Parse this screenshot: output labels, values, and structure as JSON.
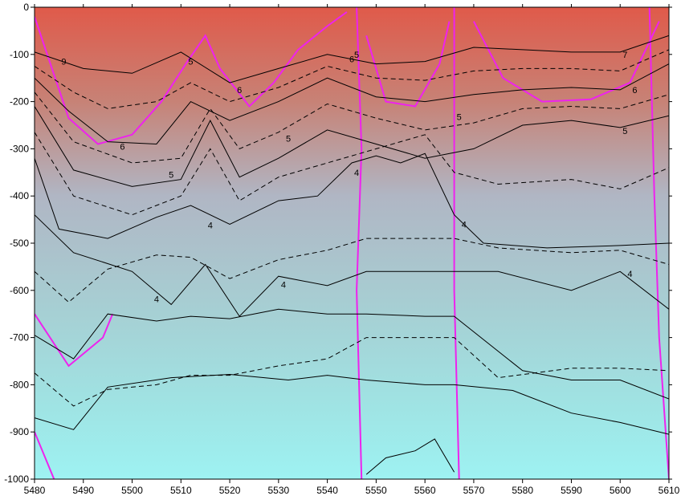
{
  "chart_data": {
    "type": "heatmap",
    "title": "",
    "xlabel": "",
    "ylabel": "",
    "xlim": [
      5480,
      5610
    ],
    "ylim": [
      -1000,
      0
    ],
    "x_ticks": [
      5480,
      5490,
      5500,
      5510,
      5520,
      5530,
      5540,
      5550,
      5560,
      5570,
      5580,
      5590,
      5600,
      5610
    ],
    "y_ticks": [
      0,
      -100,
      -200,
      -300,
      -400,
      -500,
      -600,
      -700,
      -800,
      -900,
      -1000
    ],
    "x_tick_labels": [
      "5480",
      "5490",
      "5500",
      "5510",
      "5520",
      "5530",
      "5540",
      "5550",
      "5560",
      "5570",
      "5580",
      "5590",
      "5600",
      "5610"
    ],
    "y_tick_labels": [
      "0",
      "-100",
      "-200",
      "-300",
      "-400",
      "-500",
      "-600",
      "-700",
      "-800",
      "-900",
      "-1000"
    ],
    "colors": {
      "warm": "#e05a4a",
      "mid": "#b0b6c4",
      "cool": "#9ef2f2",
      "secondary_contour": "#ee22ee",
      "contour": "#000000"
    },
    "contour_labels": [
      {
        "text": "7",
        "x": 5601,
        "y": -100
      },
      {
        "text": "6",
        "x": 5603,
        "y": -175
      },
      {
        "text": "5",
        "x": 5601,
        "y": -262
      },
      {
        "text": "4",
        "x": 5602,
        "y": -565
      },
      {
        "text": "6",
        "x": 5498,
        "y": -295
      },
      {
        "text": "4",
        "x": 5505,
        "y": -618
      },
      {
        "text": "4",
        "x": 5531,
        "y": -588
      },
      {
        "text": "4",
        "x": 5516,
        "y": -462
      },
      {
        "text": "5",
        "x": 5508,
        "y": -355
      },
      {
        "text": "5",
        "x": 5532,
        "y": -278
      },
      {
        "text": "6",
        "x": 5522,
        "y": -175
      },
      {
        "text": "5",
        "x": 5512,
        "y": -115
      },
      {
        "text": "9",
        "x": 5486,
        "y": -115
      },
      {
        "text": "6",
        "x": 5545,
        "y": -110
      },
      {
        "text": "5",
        "x": 5546,
        "y": -100
      },
      {
        "text": "4",
        "x": 5546,
        "y": -350
      },
      {
        "text": "5",
        "x": 5567,
        "y": -232
      },
      {
        "text": "4",
        "x": 5568,
        "y": -460
      }
    ],
    "contours_solid": [
      {
        "level": 7,
        "points": [
          [
            5480,
            -95
          ],
          [
            5490,
            -130
          ],
          [
            5500,
            -140
          ],
          [
            5510,
            -95
          ],
          [
            5520,
            -160
          ],
          [
            5530,
            -130
          ],
          [
            5540,
            -100
          ],
          [
            5550,
            -120
          ],
          [
            5560,
            -115
          ],
          [
            5570,
            -85
          ],
          [
            5580,
            -90
          ],
          [
            5590,
            -95
          ],
          [
            5600,
            -95
          ],
          [
            5610,
            -60
          ]
        ]
      },
      {
        "level": 6,
        "points": [
          [
            5480,
            -150
          ],
          [
            5487,
            -220
          ],
          [
            5495,
            -285
          ],
          [
            5505,
            -290
          ],
          [
            5512,
            -200
          ],
          [
            5520,
            -240
          ],
          [
            5530,
            -200
          ],
          [
            5540,
            -150
          ],
          [
            5550,
            -190
          ],
          [
            5560,
            -200
          ],
          [
            5570,
            -185
          ],
          [
            5580,
            -175
          ],
          [
            5590,
            -170
          ],
          [
            5600,
            -175
          ],
          [
            5610,
            -120
          ]
        ]
      },
      {
        "level": 5,
        "points": [
          [
            5480,
            -210
          ],
          [
            5488,
            -345
          ],
          [
            5500,
            -380
          ],
          [
            5510,
            -365
          ],
          [
            5516,
            -240
          ],
          [
            5522,
            -360
          ],
          [
            5530,
            -320
          ],
          [
            5540,
            -260
          ],
          [
            5550,
            -290
          ],
          [
            5560,
            -320
          ],
          [
            5570,
            -300
          ],
          [
            5580,
            -250
          ],
          [
            5590,
            -240
          ],
          [
            5600,
            -255
          ],
          [
            5610,
            -230
          ]
        ]
      },
      {
        "level": 4.5,
        "points": [
          [
            5480,
            -320
          ],
          [
            5485,
            -470
          ],
          [
            5495,
            -490
          ],
          [
            5505,
            -445
          ],
          [
            5512,
            -420
          ],
          [
            5520,
            -460
          ],
          [
            5530,
            -410
          ],
          [
            5538,
            -400
          ],
          [
            5545,
            -330
          ],
          [
            5550,
            -315
          ],
          [
            5555,
            -330
          ],
          [
            5560,
            -310
          ],
          [
            5566,
            -440
          ],
          [
            5572,
            -500
          ],
          [
            5585,
            -510
          ],
          [
            5600,
            -505
          ],
          [
            5610,
            -500
          ]
        ]
      },
      {
        "level": 4,
        "points": [
          [
            5480,
            -440
          ],
          [
            5488,
            -520
          ],
          [
            5500,
            -560
          ],
          [
            5508,
            -630
          ],
          [
            5515,
            -545
          ],
          [
            5522,
            -655
          ],
          [
            5530,
            -570
          ],
          [
            5540,
            -590
          ],
          [
            5548,
            -560
          ],
          [
            5556,
            -560
          ],
          [
            5566,
            -560
          ],
          [
            5575,
            -560
          ],
          [
            5590,
            -600
          ],
          [
            5600,
            -560
          ],
          [
            5610,
            -640
          ]
        ]
      },
      {
        "level": 3,
        "points": [
          [
            5480,
            -695
          ],
          [
            5488,
            -745
          ],
          [
            5495,
            -650
          ],
          [
            5505,
            -665
          ],
          [
            5512,
            -655
          ],
          [
            5520,
            -660
          ],
          [
            5530,
            -640
          ],
          [
            5540,
            -650
          ],
          [
            5548,
            -650
          ],
          [
            5560,
            -655
          ],
          [
            5566,
            -655
          ],
          [
            5580,
            -770
          ],
          [
            5590,
            -790
          ],
          [
            5600,
            -790
          ],
          [
            5610,
            -830
          ]
        ]
      },
      {
        "level": 2.5,
        "points": [
          [
            5480,
            -870
          ],
          [
            5488,
            -895
          ],
          [
            5495,
            -805
          ],
          [
            5508,
            -785
          ],
          [
            5520,
            -778
          ],
          [
            5532,
            -790
          ],
          [
            5540,
            -780
          ],
          [
            5548,
            -790
          ],
          [
            5560,
            -800
          ],
          [
            5566,
            -800
          ],
          [
            5578,
            -812
          ],
          [
            5590,
            -860
          ],
          [
            5600,
            -880
          ],
          [
            5610,
            -905
          ]
        ]
      },
      {
        "level": 2,
        "points": [
          [
            5548,
            -990
          ],
          [
            5552,
            -955
          ],
          [
            5558,
            -940
          ],
          [
            5562,
            -915
          ],
          [
            5566,
            -985
          ]
        ]
      }
    ],
    "contours_dashed": [
      {
        "level": 6.5,
        "points": [
          [
            5480,
            -125
          ],
          [
            5488,
            -180
          ],
          [
            5495,
            -215
          ],
          [
            5505,
            -200
          ],
          [
            5512,
            -160
          ],
          [
            5520,
            -200
          ],
          [
            5530,
            -170
          ],
          [
            5540,
            -125
          ],
          [
            5550,
            -150
          ],
          [
            5560,
            -155
          ],
          [
            5570,
            -135
          ],
          [
            5580,
            -130
          ],
          [
            5590,
            -130
          ],
          [
            5600,
            -135
          ],
          [
            5610,
            -90
          ]
        ]
      },
      {
        "level": 5.5,
        "points": [
          [
            5480,
            -180
          ],
          [
            5488,
            -285
          ],
          [
            5500,
            -330
          ],
          [
            5510,
            -320
          ],
          [
            5516,
            -215
          ],
          [
            5522,
            -300
          ],
          [
            5530,
            -265
          ],
          [
            5540,
            -205
          ],
          [
            5550,
            -235
          ],
          [
            5560,
            -260
          ],
          [
            5570,
            -245
          ],
          [
            5580,
            -215
          ],
          [
            5590,
            -210
          ],
          [
            5600,
            -215
          ],
          [
            5610,
            -185
          ]
        ]
      },
      {
        "level": 4.8,
        "points": [
          [
            5480,
            -265
          ],
          [
            5488,
            -400
          ],
          [
            5500,
            -440
          ],
          [
            5510,
            -400
          ],
          [
            5516,
            -300
          ],
          [
            5522,
            -410
          ],
          [
            5530,
            -360
          ],
          [
            5540,
            -330
          ],
          [
            5550,
            -300
          ],
          [
            5560,
            -270
          ],
          [
            5566,
            -350
          ],
          [
            5575,
            -375
          ],
          [
            5590,
            -365
          ],
          [
            5600,
            -385
          ],
          [
            5610,
            -340
          ]
        ]
      },
      {
        "level": 3.5,
        "points": [
          [
            5480,
            -560
          ],
          [
            5487,
            -625
          ],
          [
            5495,
            -555
          ],
          [
            5505,
            -525
          ],
          [
            5512,
            -530
          ],
          [
            5520,
            -575
          ],
          [
            5530,
            -535
          ],
          [
            5540,
            -515
          ],
          [
            5548,
            -490
          ],
          [
            5560,
            -490
          ],
          [
            5566,
            -490
          ],
          [
            5575,
            -510
          ],
          [
            5590,
            -520
          ],
          [
            5600,
            -515
          ],
          [
            5610,
            -545
          ]
        ]
      },
      {
        "level": 2.8,
        "points": [
          [
            5480,
            -775
          ],
          [
            5488,
            -845
          ],
          [
            5495,
            -810
          ],
          [
            5505,
            -800
          ],
          [
            5512,
            -780
          ],
          [
            5520,
            -780
          ],
          [
            5530,
            -760
          ],
          [
            5540,
            -745
          ],
          [
            5548,
            -700
          ],
          [
            5556,
            -700
          ],
          [
            5566,
            -700
          ],
          [
            5575,
            -785
          ],
          [
            5590,
            -765
          ],
          [
            5600,
            -765
          ],
          [
            5610,
            -770
          ]
        ]
      }
    ],
    "magenta_lines": [
      {
        "points": [
          [
            5546,
            0
          ],
          [
            5547,
            -300
          ],
          [
            5546,
            -600
          ],
          [
            5547,
            -1000
          ]
        ]
      },
      {
        "points": [
          [
            5566,
            0
          ],
          [
            5566,
            -300
          ],
          [
            5566,
            -600
          ],
          [
            5567,
            -1000
          ]
        ]
      },
      {
        "points": [
          [
            5480,
            -650
          ],
          [
            5487,
            -760
          ],
          [
            5494,
            -700
          ],
          [
            5496,
            -650
          ]
        ]
      },
      {
        "points": [
          [
            5606,
            0
          ],
          [
            5607,
            -400
          ],
          [
            5608,
            -700
          ],
          [
            5610,
            -1000
          ]
        ]
      },
      {
        "points": [
          [
            5480,
            -20
          ],
          [
            5487,
            -235
          ],
          [
            5493,
            -290
          ],
          [
            5500,
            -270
          ],
          [
            5506,
            -200
          ],
          [
            5511,
            -120
          ],
          [
            5515,
            -60
          ],
          [
            5518,
            -130
          ],
          [
            5524,
            -210
          ],
          [
            5529,
            -160
          ],
          [
            5534,
            -90
          ],
          [
            5540,
            -40
          ],
          [
            5544,
            -10
          ]
        ]
      },
      {
        "points": [
          [
            5570,
            -30
          ],
          [
            5576,
            -150
          ],
          [
            5584,
            -200
          ],
          [
            5594,
            -195
          ],
          [
            5602,
            -160
          ],
          [
            5608,
            -30
          ]
        ]
      },
      {
        "points": [
          [
            5548,
            -60
          ],
          [
            5552,
            -200
          ],
          [
            5558,
            -210
          ],
          [
            5563,
            -120
          ],
          [
            5565,
            -30
          ]
        ]
      },
      {
        "points": [
          [
            5480,
            -900
          ],
          [
            5482,
            -950
          ],
          [
            5484,
            -1000
          ]
        ]
      }
    ]
  }
}
